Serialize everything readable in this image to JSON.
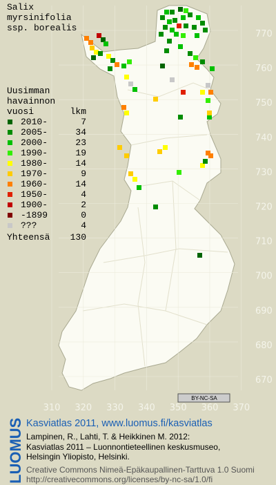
{
  "title": [
    "Salix",
    "myrsinifolia",
    "ssp. borealis"
  ],
  "legend": {
    "header": [
      "Uusimman",
      "havainnon",
      "vuosi"
    ],
    "count_header": "lkm",
    "rows": [
      {
        "label": "2010-",
        "count": 7,
        "color": "#006400"
      },
      {
        "label": "2005-",
        "count": 34,
        "color": "#008c00"
      },
      {
        "label": "2000-",
        "count": 23,
        "color": "#00c000"
      },
      {
        "label": "1990-",
        "count": 19,
        "color": "#33ee00"
      },
      {
        "label": "1980-",
        "count": 14,
        "color": "#ffff00"
      },
      {
        "label": "1970-",
        "count": 9,
        "color": "#ffcc00"
      },
      {
        "label": "1960-",
        "count": 14,
        "color": "#ff8000"
      },
      {
        "label": "1950-",
        "count": 4,
        "color": "#e02000"
      },
      {
        "label": "1900-",
        "count": 2,
        "color": "#c00000"
      },
      {
        "label": "-1899",
        "count": 0,
        "color": "#800000"
      },
      {
        "label": "???",
        "count": 4,
        "color": "#c8c8c8"
      }
    ],
    "total_label": "Yhteensä",
    "total": 130
  },
  "grid": {
    "y_labels": [
      770,
      760,
      750,
      740,
      730,
      720,
      710,
      700,
      690,
      680,
      670
    ],
    "x_labels": [
      310,
      320,
      330,
      340,
      350,
      360,
      370
    ]
  },
  "badge": "BY-NC-SA",
  "footer": {
    "logo": "LUOMUS",
    "heading": "Kasviatlas 2011, www.luomus.fi/kasviatlas",
    "citation": [
      "Lampinen, R., Lahti, T. & Heikkinen M. 2012:",
      "Kasviatlas 2011 – Luonnontieteellinen keskusmuseo,",
      "Helsingin Yliopisto, Helsinki."
    ],
    "license": [
      "Creative Commons Nimeä-Epäkaupallinen-Tarttuva 1.0 Suomi",
      "http://creativecommons.org/licenses/by-nc-sa/1.0/fi"
    ]
  }
}
